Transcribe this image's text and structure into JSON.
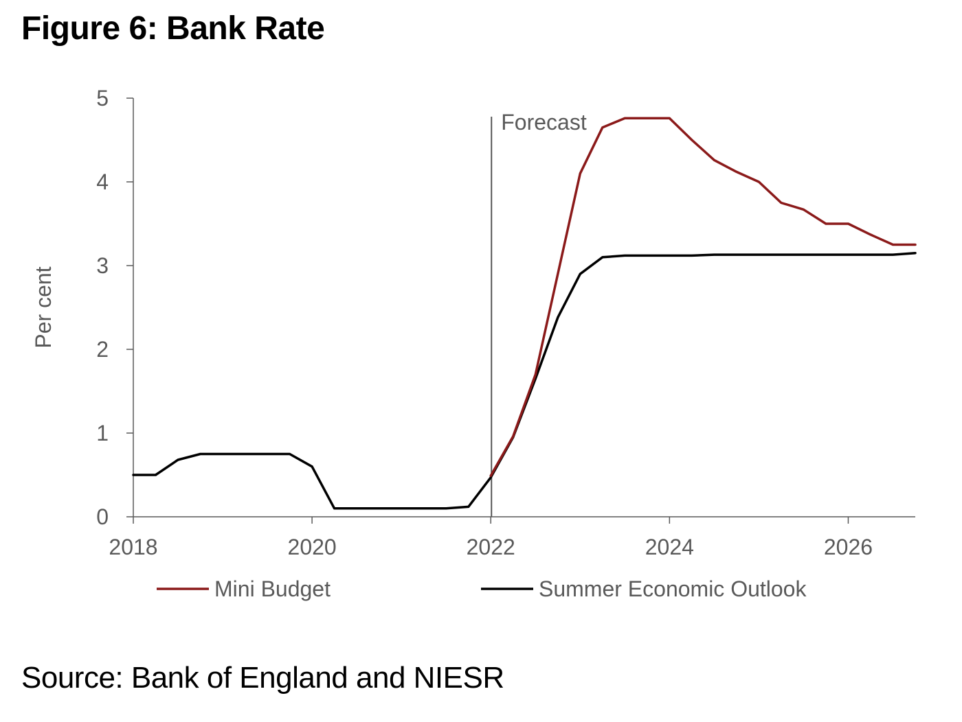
{
  "title": "Figure 6: Bank Rate",
  "source": "Source: Bank of England and NIESR",
  "chart_data": {
    "type": "line",
    "ylabel": "Per cent",
    "ylim": [
      0,
      5
    ],
    "yticks": [
      "0",
      "1",
      "2",
      "3",
      "4",
      "5"
    ],
    "xlim": [
      2018.0,
      2026.75
    ],
    "xticks": [
      "2018",
      "2020",
      "2022",
      "2024",
      "2026"
    ],
    "grid": false,
    "legend_position": "bottom",
    "annotation": {
      "label": "Forecast",
      "x": 2022.0
    },
    "series": [
      {
        "name": "Mini Budget",
        "color": "#8b1a1a",
        "x": [
          2022.0,
          2022.25,
          2022.5,
          2022.75,
          2023.0,
          2023.25,
          2023.5,
          2023.75,
          2024.0,
          2024.25,
          2024.5,
          2024.75,
          2025.0,
          2025.25,
          2025.5,
          2025.75,
          2026.0,
          2026.25,
          2026.5,
          2026.75
        ],
        "y": [
          0.49,
          0.96,
          1.7,
          2.9,
          4.1,
          4.65,
          4.76,
          4.76,
          4.76,
          4.5,
          4.26,
          4.12,
          4.0,
          3.75,
          3.67,
          3.5,
          3.5,
          3.37,
          3.25,
          3.25
        ]
      },
      {
        "name": "Summer Economic Outlook",
        "color": "#000000",
        "x": [
          2018.0,
          2018.25,
          2018.5,
          2018.75,
          2019.0,
          2019.25,
          2019.5,
          2019.75,
          2020.0,
          2020.25,
          2020.5,
          2020.75,
          2021.0,
          2021.25,
          2021.5,
          2021.75,
          2022.0,
          2022.25,
          2022.5,
          2022.75,
          2023.0,
          2023.25,
          2023.5,
          2023.75,
          2024.0,
          2024.25,
          2024.5,
          2024.75,
          2025.0,
          2025.25,
          2025.5,
          2025.75,
          2026.0,
          2026.25,
          2026.5,
          2026.75
        ],
        "y": [
          0.5,
          0.5,
          0.68,
          0.75,
          0.75,
          0.75,
          0.75,
          0.75,
          0.6,
          0.1,
          0.1,
          0.1,
          0.1,
          0.1,
          0.1,
          0.12,
          0.47,
          0.95,
          1.65,
          2.38,
          2.9,
          3.1,
          3.12,
          3.12,
          3.12,
          3.12,
          3.13,
          3.13,
          3.13,
          3.13,
          3.13,
          3.13,
          3.13,
          3.13,
          3.13,
          3.15
        ]
      }
    ]
  }
}
